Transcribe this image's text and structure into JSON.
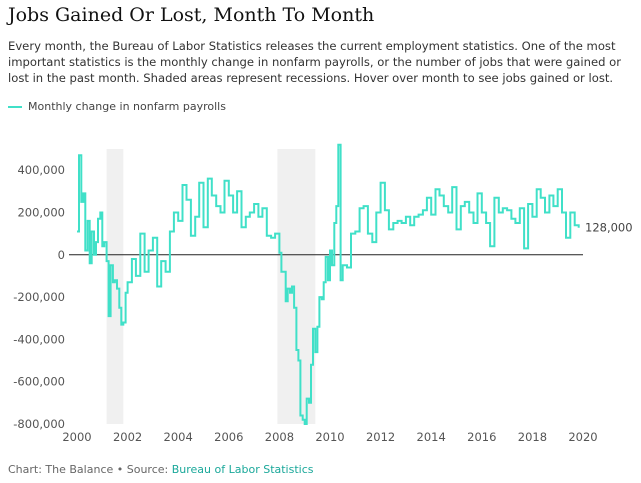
{
  "header": {
    "title": "Jobs Gained Or Lost, Month To Month",
    "subtitle": "Every month, the Bureau of Labor Statistics releases the current employment statistics. One of the most important statistics is the monthly change in nonfarm payrolls, or the number of jobs that were gained or lost in the past month. Shaded areas represent recessions. Hover over month to see jobs gained or lost."
  },
  "legend": {
    "label": "Monthly change in nonfarm payrolls"
  },
  "footer": {
    "prefix": "Chart: The Balance • Source: ",
    "source": "Bureau of Labor Statistics"
  },
  "colors": {
    "series": "#40e0c8",
    "recession": "#f0f0f0",
    "source_link": "#1aa89a",
    "zero_line": "#222222"
  },
  "chart_data": {
    "type": "line",
    "title": "Jobs Gained Or Lost, Month To Month",
    "xlabel": "",
    "ylabel": "",
    "xlim": [
      2000,
      2020
    ],
    "ylim": [
      -800000,
      500000
    ],
    "x_ticks": [
      "2000",
      "2002",
      "2004",
      "2006",
      "2008",
      "2010",
      "2012",
      "2014",
      "2016",
      "2018",
      "2020"
    ],
    "y_ticks": [
      {
        "value": 400000,
        "label": "400,000"
      },
      {
        "value": 200000,
        "label": "200,000"
      },
      {
        "value": 0,
        "label": "0"
      },
      {
        "value": -200000,
        "label": "-200,000"
      },
      {
        "value": -400000,
        "label": "-400,000"
      },
      {
        "value": -600000,
        "label": "-600,000"
      },
      {
        "value": -800000,
        "label": "-800,000"
      }
    ],
    "recessions": [
      {
        "start": 2001.17,
        "end": 2001.83
      },
      {
        "start": 2007.92,
        "end": 2009.42
      }
    ],
    "end_label": "128,000",
    "series": [
      {
        "name": "Monthly change in nonfarm payrolls",
        "x": [
          2000.0,
          2000.08,
          2000.17,
          2000.25,
          2000.33,
          2000.42,
          2000.5,
          2000.58,
          2000.67,
          2000.75,
          2000.83,
          2000.92,
          2001.0,
          2001.08,
          2001.17,
          2001.25,
          2001.33,
          2001.42,
          2001.5,
          2001.58,
          2001.67,
          2001.75,
          2001.83,
          2001.92,
          2002.0,
          2002.17,
          2002.33,
          2002.5,
          2002.67,
          2002.83,
          2003.0,
          2003.17,
          2003.33,
          2003.5,
          2003.67,
          2003.83,
          2004.0,
          2004.17,
          2004.33,
          2004.5,
          2004.67,
          2004.83,
          2005.0,
          2005.17,
          2005.33,
          2005.5,
          2005.67,
          2005.83,
          2006.0,
          2006.17,
          2006.33,
          2006.5,
          2006.67,
          2006.83,
          2007.0,
          2007.17,
          2007.33,
          2007.5,
          2007.67,
          2007.83,
          2008.0,
          2008.08,
          2008.17,
          2008.25,
          2008.33,
          2008.42,
          2008.5,
          2008.58,
          2008.67,
          2008.75,
          2008.83,
          2008.92,
          2009.0,
          2009.08,
          2009.17,
          2009.25,
          2009.33,
          2009.42,
          2009.5,
          2009.58,
          2009.67,
          2009.75,
          2009.83,
          2009.92,
          2010.0,
          2010.08,
          2010.17,
          2010.25,
          2010.33,
          2010.42,
          2010.5,
          2010.67,
          2010.83,
          2011.0,
          2011.17,
          2011.33,
          2011.5,
          2011.67,
          2011.83,
          2012.0,
          2012.17,
          2012.33,
          2012.5,
          2012.67,
          2012.83,
          2013.0,
          2013.17,
          2013.33,
          2013.5,
          2013.67,
          2013.83,
          2014.0,
          2014.17,
          2014.33,
          2014.5,
          2014.67,
          2014.83,
          2015.0,
          2015.17,
          2015.33,
          2015.5,
          2015.67,
          2015.83,
          2016.0,
          2016.17,
          2016.33,
          2016.5,
          2016.67,
          2016.83,
          2017.0,
          2017.17,
          2017.33,
          2017.5,
          2017.67,
          2017.83,
          2018.0,
          2018.17,
          2018.33,
          2018.5,
          2018.67,
          2018.83,
          2019.0,
          2019.17,
          2019.33,
          2019.5,
          2019.67,
          2019.83
        ],
        "values": [
          110000,
          470000,
          250000,
          290000,
          20000,
          160000,
          -40000,
          110000,
          0,
          60000,
          170000,
          200000,
          40000,
          60000,
          -30000,
          -290000,
          -50000,
          -130000,
          -120000,
          -160000,
          -250000,
          -330000,
          -320000,
          -180000,
          -130000,
          -20000,
          -100000,
          100000,
          -80000,
          20000,
          80000,
          -150000,
          -30000,
          -80000,
          110000,
          200000,
          160000,
          330000,
          260000,
          90000,
          180000,
          340000,
          130000,
          360000,
          280000,
          230000,
          200000,
          350000,
          280000,
          200000,
          300000,
          130000,
          180000,
          200000,
          240000,
          180000,
          220000,
          90000,
          80000,
          100000,
          10000,
          -80000,
          -80000,
          -220000,
          -160000,
          -180000,
          -150000,
          -250000,
          -450000,
          -500000,
          -760000,
          -780000,
          -800000,
          -680000,
          -700000,
          -520000,
          -350000,
          -460000,
          -340000,
          -200000,
          -210000,
          -130000,
          -10000,
          -120000,
          20000,
          -50000,
          150000,
          230000,
          520000,
          -120000,
          -50000,
          -60000,
          100000,
          110000,
          220000,
          230000,
          100000,
          60000,
          200000,
          340000,
          210000,
          120000,
          150000,
          160000,
          150000,
          180000,
          140000,
          180000,
          190000,
          210000,
          270000,
          190000,
          310000,
          280000,
          230000,
          200000,
          320000,
          120000,
          230000,
          250000,
          200000,
          150000,
          290000,
          200000,
          150000,
          40000,
          270000,
          200000,
          220000,
          210000,
          170000,
          150000,
          220000,
          30000,
          240000,
          180000,
          310000,
          270000,
          200000,
          280000,
          230000,
          310000,
          200000,
          80000,
          200000,
          140000,
          128000
        ]
      }
    ]
  }
}
